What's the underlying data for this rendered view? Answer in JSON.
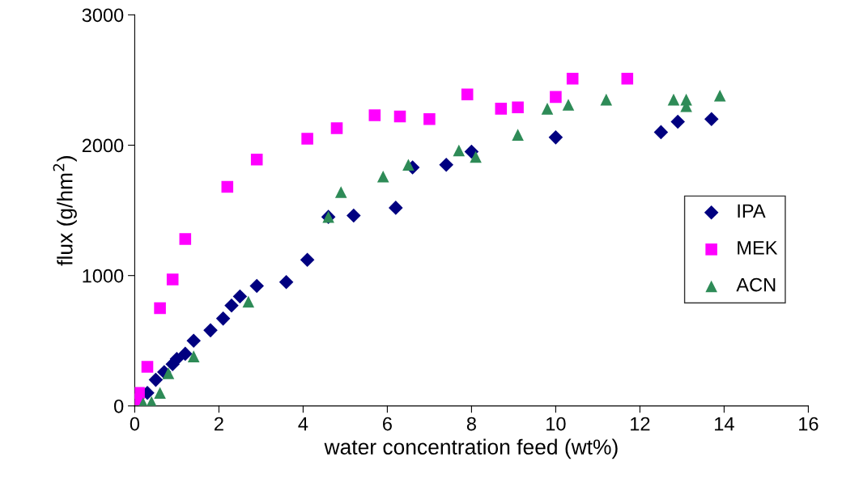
{
  "chart_data": {
    "type": "scatter",
    "xlabel": "water concentration feed (wt%)",
    "ylabel": "flux (g/hm$^{2}$)",
    "xlim": [
      0,
      16
    ],
    "xticks": [
      0,
      2,
      4,
      6,
      8,
      10,
      12,
      14,
      16
    ],
    "ylim": [
      0,
      3000
    ],
    "yticks": [
      0,
      1000,
      2000,
      3000
    ],
    "grid": false,
    "legend": "right",
    "series": [
      {
        "name": "IPA",
        "color": "#000080",
        "marker": "diamond",
        "x": [
          0.3,
          0.5,
          0.7,
          0.9,
          1.0,
          1.2,
          1.4,
          1.8,
          2.1,
          2.3,
          2.5,
          2.9,
          3.6,
          4.1,
          4.6,
          5.2,
          6.2,
          6.6,
          7.4,
          8.0,
          10.0,
          12.5,
          12.9,
          13.7
        ],
        "values": [
          100,
          200,
          260,
          320,
          360,
          400,
          500,
          580,
          670,
          770,
          840,
          920,
          950,
          1120,
          1450,
          1460,
          1520,
          1830,
          1850,
          1950,
          2060,
          2100,
          2180,
          2200
        ]
      },
      {
        "name": "MEK",
        "color": "#ff00ff",
        "marker": "square",
        "x": [
          0.05,
          0.1,
          0.3,
          0.6,
          0.9,
          1.2,
          2.2,
          2.9,
          4.1,
          4.8,
          5.7,
          6.3,
          7.0,
          7.9,
          8.7,
          9.1,
          10.0,
          10.4,
          11.7
        ],
        "values": [
          50,
          100,
          300,
          750,
          970,
          1280,
          1680,
          1890,
          2050,
          2130,
          2230,
          2220,
          2200,
          2390,
          2280,
          2290,
          2370,
          2510,
          2510
        ]
      },
      {
        "name": "ACN",
        "color": "#2e8b57",
        "marker": "triangle",
        "x": [
          0.2,
          0.4,
          0.6,
          0.8,
          1.4,
          2.7,
          4.6,
          4.9,
          5.9,
          6.5,
          7.7,
          8.1,
          9.1,
          9.8,
          10.3,
          11.2,
          12.8,
          13.1,
          13.1,
          13.9
        ],
        "values": [
          20,
          30,
          100,
          250,
          380,
          800,
          1450,
          1640,
          1760,
          1850,
          1960,
          1910,
          2080,
          2280,
          2310,
          2350,
          2350,
          2300,
          2350,
          2380
        ]
      }
    ]
  }
}
